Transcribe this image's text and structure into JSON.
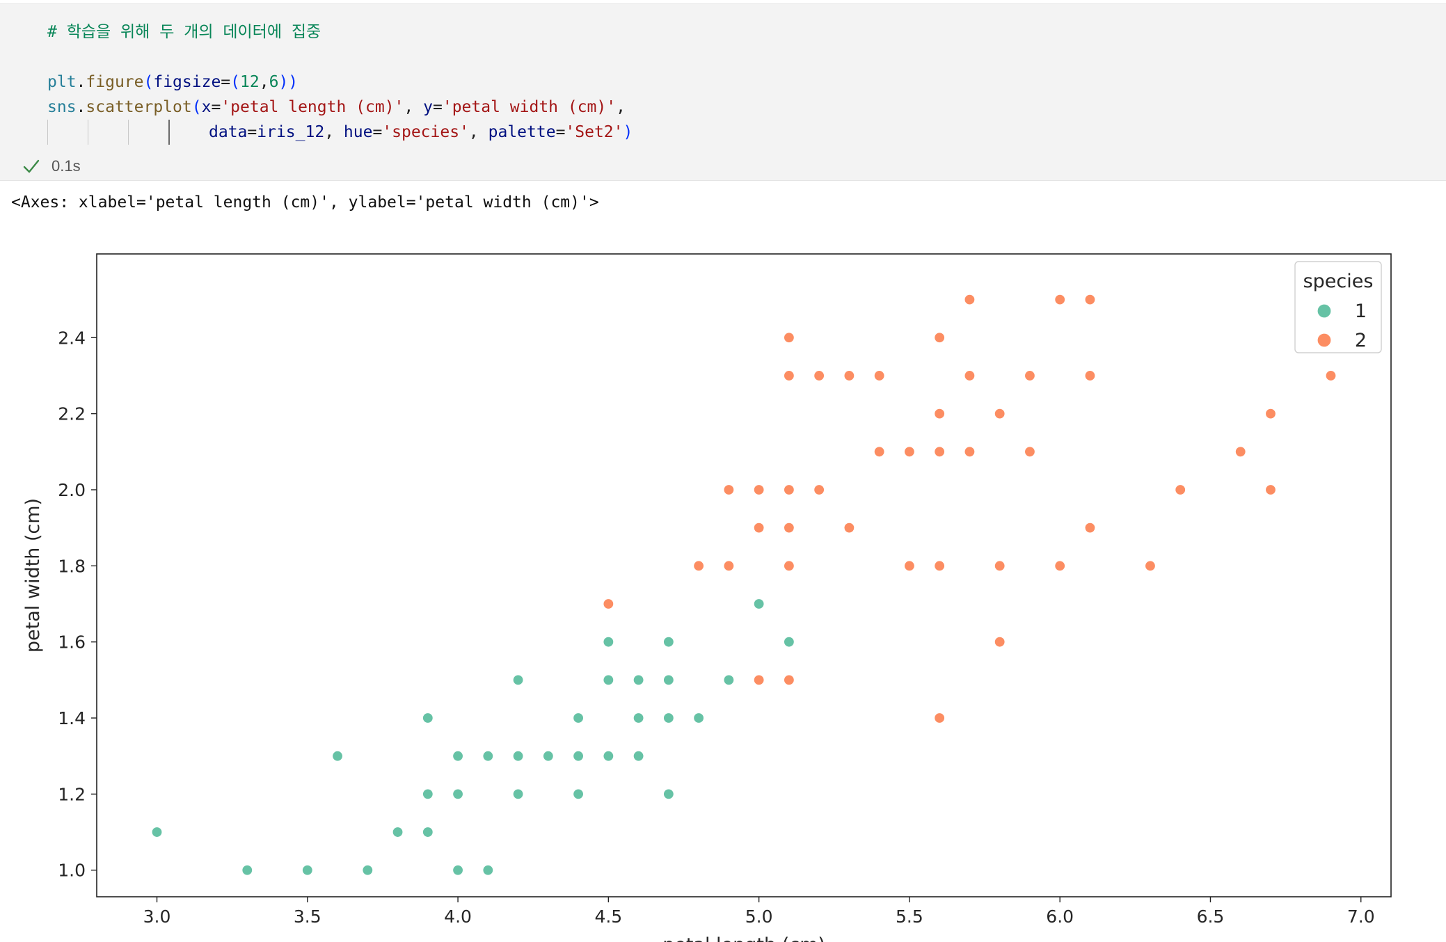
{
  "cell": {
    "code_lines": [
      [
        {
          "t": "comment",
          "v": "# 학습을 위해 두 개의 데이터에 집중"
        }
      ],
      [],
      [
        {
          "t": "var",
          "v": "plt"
        },
        {
          "t": "plain",
          "v": "."
        },
        {
          "t": "fn",
          "v": "figure"
        },
        {
          "t": "punc",
          "v": "("
        },
        {
          "t": "param",
          "v": "figsize"
        },
        {
          "t": "plain",
          "v": "="
        },
        {
          "t": "punc",
          "v": "("
        },
        {
          "t": "num",
          "v": "12"
        },
        {
          "t": "plain",
          "v": ","
        },
        {
          "t": "num",
          "v": "6"
        },
        {
          "t": "punc",
          "v": "))"
        }
      ],
      [
        {
          "t": "var",
          "v": "sns"
        },
        {
          "t": "plain",
          "v": "."
        },
        {
          "t": "fn",
          "v": "scatterplot"
        },
        {
          "t": "punc",
          "v": "("
        },
        {
          "t": "param",
          "v": "x"
        },
        {
          "t": "plain",
          "v": "="
        },
        {
          "t": "str",
          "v": "'petal length (cm)'"
        },
        {
          "t": "plain",
          "v": ", "
        },
        {
          "t": "param",
          "v": "y"
        },
        {
          "t": "plain",
          "v": "="
        },
        {
          "t": "str",
          "v": "'petal width (cm)'"
        },
        {
          "t": "plain",
          "v": ","
        }
      ],
      [
        {
          "t": "param",
          "v": "data"
        },
        {
          "t": "plain",
          "v": "="
        },
        {
          "t": "param",
          "v": "iris_12"
        },
        {
          "t": "plain",
          "v": ", "
        },
        {
          "t": "param",
          "v": "hue"
        },
        {
          "t": "plain",
          "v": "="
        },
        {
          "t": "str",
          "v": "'species'"
        },
        {
          "t": "plain",
          "v": ", "
        },
        {
          "t": "param",
          "v": "palette"
        },
        {
          "t": "plain",
          "v": "="
        },
        {
          "t": "str",
          "v": "'Set2'"
        },
        {
          "t": "punc",
          "v": ")"
        }
      ]
    ],
    "exec_time": "0.1s",
    "output_repr": "<Axes: xlabel='petal length (cm)', ylabel='petal width (cm)'>"
  },
  "chart_data": {
    "type": "scatter",
    "title": "",
    "xlabel": "petal length (cm)",
    "ylabel": "petal width (cm)",
    "xlim": [
      2.8,
      7.1
    ],
    "ylim": [
      0.93,
      2.62
    ],
    "xticks": [
      "3.0",
      "3.5",
      "4.0",
      "4.5",
      "5.0",
      "5.5",
      "6.0",
      "6.5",
      "7.0"
    ],
    "yticks": [
      "1.0",
      "1.2",
      "1.4",
      "1.6",
      "1.8",
      "2.0",
      "2.2",
      "2.4"
    ],
    "grid": false,
    "legend": {
      "title": "species",
      "placement": "top-right"
    },
    "series": [
      {
        "name": "1",
        "color": "#66c2a5",
        "points": [
          [
            3.0,
            1.1
          ],
          [
            3.3,
            1.0
          ],
          [
            3.5,
            1.0
          ],
          [
            3.6,
            1.3
          ],
          [
            3.7,
            1.0
          ],
          [
            3.8,
            1.1
          ],
          [
            3.9,
            1.4
          ],
          [
            3.9,
            1.2
          ],
          [
            3.9,
            1.1
          ],
          [
            4.0,
            1.3
          ],
          [
            4.0,
            1.2
          ],
          [
            4.0,
            1.0
          ],
          [
            4.1,
            1.3
          ],
          [
            4.1,
            1.0
          ],
          [
            4.2,
            1.5
          ],
          [
            4.2,
            1.3
          ],
          [
            4.2,
            1.2
          ],
          [
            4.3,
            1.3
          ],
          [
            4.4,
            1.4
          ],
          [
            4.4,
            1.3
          ],
          [
            4.4,
            1.2
          ],
          [
            4.5,
            1.6
          ],
          [
            4.5,
            1.5
          ],
          [
            4.5,
            1.3
          ],
          [
            4.6,
            1.5
          ],
          [
            4.6,
            1.4
          ],
          [
            4.6,
            1.3
          ],
          [
            4.7,
            1.6
          ],
          [
            4.7,
            1.5
          ],
          [
            4.7,
            1.4
          ],
          [
            4.7,
            1.2
          ],
          [
            4.8,
            1.4
          ],
          [
            4.9,
            1.5
          ],
          [
            5.0,
            1.7
          ],
          [
            5.1,
            1.6
          ]
        ]
      },
      {
        "name": "2",
        "color": "#fc8d62",
        "points": [
          [
            4.5,
            1.7
          ],
          [
            4.8,
            1.8
          ],
          [
            4.9,
            2.0
          ],
          [
            4.9,
            1.8
          ],
          [
            5.0,
            2.0
          ],
          [
            5.0,
            1.9
          ],
          [
            5.0,
            1.5
          ],
          [
            5.1,
            2.4
          ],
          [
            5.1,
            2.3
          ],
          [
            5.1,
            2.0
          ],
          [
            5.1,
            1.9
          ],
          [
            5.1,
            1.8
          ],
          [
            5.1,
            1.5
          ],
          [
            5.2,
            2.3
          ],
          [
            5.2,
            2.0
          ],
          [
            5.3,
            2.3
          ],
          [
            5.3,
            1.9
          ],
          [
            5.4,
            2.3
          ],
          [
            5.4,
            2.1
          ],
          [
            5.5,
            2.1
          ],
          [
            5.5,
            1.8
          ],
          [
            5.6,
            2.4
          ],
          [
            5.6,
            2.2
          ],
          [
            5.6,
            2.1
          ],
          [
            5.6,
            1.8
          ],
          [
            5.6,
            1.4
          ],
          [
            5.7,
            2.5
          ],
          [
            5.7,
            2.3
          ],
          [
            5.7,
            2.1
          ],
          [
            5.8,
            2.2
          ],
          [
            5.8,
            1.8
          ],
          [
            5.8,
            1.6
          ],
          [
            5.9,
            2.3
          ],
          [
            5.9,
            2.1
          ],
          [
            6.0,
            2.5
          ],
          [
            6.0,
            1.8
          ],
          [
            6.1,
            2.5
          ],
          [
            6.1,
            2.3
          ],
          [
            6.1,
            1.9
          ],
          [
            6.3,
            1.8
          ],
          [
            6.4,
            2.0
          ],
          [
            6.6,
            2.1
          ],
          [
            6.7,
            2.2
          ],
          [
            6.7,
            2.0
          ],
          [
            6.9,
            2.3
          ]
        ]
      }
    ]
  }
}
